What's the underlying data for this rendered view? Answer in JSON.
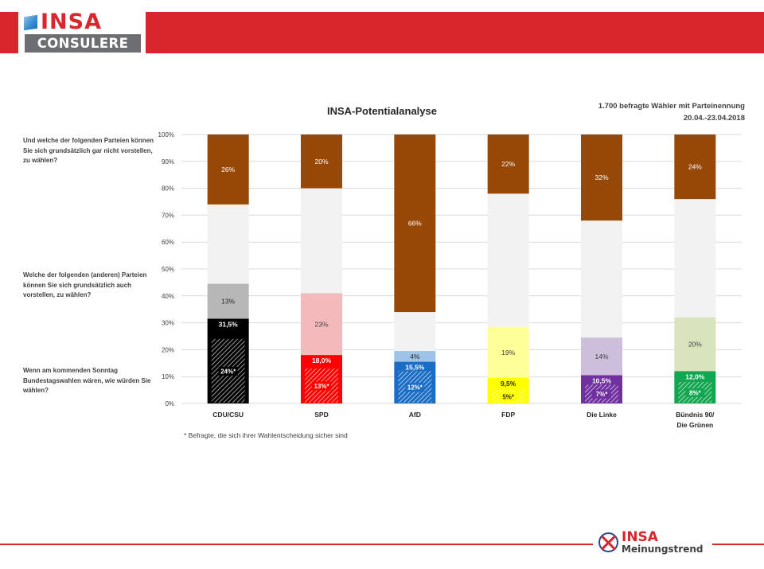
{
  "brand": {
    "logo_top": "INSA",
    "logo_bottom": "CONSULERE",
    "footer_top": "INSA",
    "footer_bottom": "Meinungstrend"
  },
  "sample_info": {
    "line1": "1.700 befragte Wähler mit Parteinennung",
    "line2": "20.04.-23.04.2018"
  },
  "questions": {
    "q1": "Und welche der folgenden Parteien können Sie sich grundsätzlich gar nicht vorstellen, zu wählen?",
    "q2": "Welche der folgenden (anderen) Parteien können Sie sich grundsätzlich auch vorstellen, zu wählen?",
    "q3": "Wenn am kommenden Sonntag Bundestagswahlen wären, wie würden Sie wählen?"
  },
  "footnote": "* Befragte, die sich ihrer Wahlentscheidung sicher sind",
  "chart_data": {
    "type": "bar",
    "title": "INSA-Potentialanalyse",
    "y_tick_labels": [
      "0%",
      "10%",
      "20%",
      "30%",
      "40%",
      "50%",
      "60%",
      "70%",
      "80%",
      "90%",
      "100%"
    ],
    "ylim": [
      0,
      100
    ],
    "grid": true,
    "categories": [
      {
        "line1": "CDU/CSU",
        "line2": ""
      },
      {
        "line1": "SPD",
        "line2": ""
      },
      {
        "line1": "AfD",
        "line2": ""
      },
      {
        "line1": "FDP",
        "line2": ""
      },
      {
        "line1": "Die Linke",
        "line2": ""
      },
      {
        "line1": "Bündnis 90/",
        "line2": "Die Grünen"
      }
    ],
    "vote": [
      31.5,
      18.0,
      15.5,
      9.5,
      10.5,
      12.0
    ],
    "vote_labels": [
      "31,5%",
      "18,0%",
      "15,5%",
      "9,5%",
      "10,5%",
      "12,0%"
    ],
    "certain": [
      24,
      13,
      12,
      5,
      7,
      8
    ],
    "certain_labels": [
      "24%*",
      "13%*",
      "12%*",
      "5%*",
      "7%*",
      "8%*"
    ],
    "could": [
      13,
      23,
      4,
      19,
      14,
      20
    ],
    "could_labels": [
      "13%",
      "23%",
      "4%",
      "19%",
      "14%",
      "20%"
    ],
    "not": [
      26,
      20,
      66,
      22,
      32,
      24
    ],
    "not_labels": [
      "26%",
      "20%",
      "66%",
      "22%",
      "32%",
      "24%"
    ],
    "colors": {
      "vote": [
        "#000000",
        "#ff0000",
        "#1a6dc4",
        "#ffff00",
        "#7030a0",
        "#12a650"
      ],
      "could": [
        "#b7b7b7",
        "#f4b9bb",
        "#9dc3e6",
        "#ffff99",
        "#cdbfdc",
        "#d8e4bc"
      ],
      "could_text": [
        "#262626",
        "#404040",
        "#262626",
        "#404040",
        "#404040",
        "#404040"
      ],
      "vote_text": [
        "#ffffff",
        "#ffffff",
        "#ffffff",
        "#262626",
        "#ffffff",
        "#ffffff"
      ],
      "remainder": "#f2f2f2",
      "not": "#974806",
      "not_text": "#ffffff",
      "grid": "#d9d9d9"
    }
  }
}
